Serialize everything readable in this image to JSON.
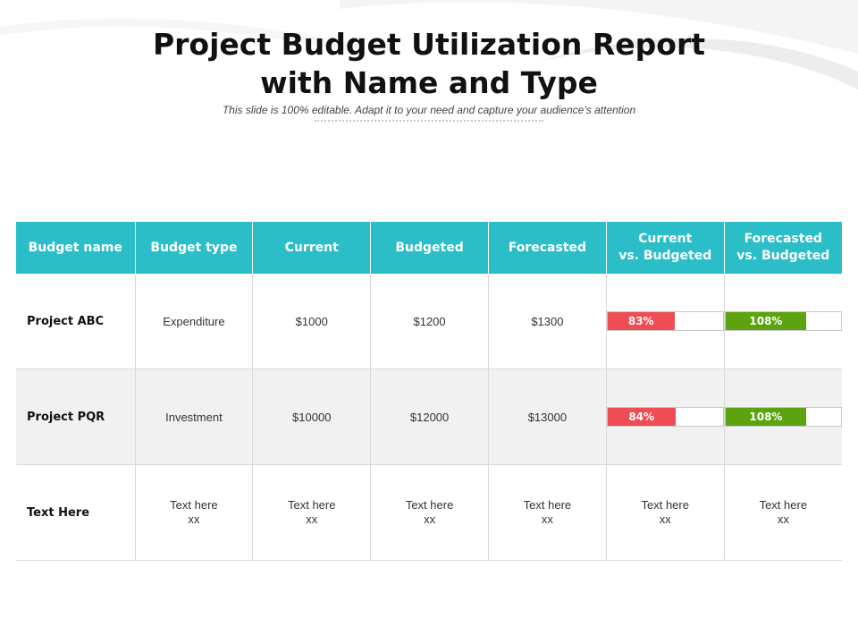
{
  "title": {
    "line1": "Project Budget Utilization Report",
    "line2": "with Name and Type"
  },
  "subtitle": "This slide is 100% editable. Adapt it to your need and capture your audience’s attention",
  "colors": {
    "header_bg": "#2bbec8",
    "current_bar": "#ee4d55",
    "forecast_bar": "#5ca30f"
  },
  "table": {
    "headers": [
      {
        "lines": [
          "Budget name"
        ]
      },
      {
        "lines": [
          "Budget type"
        ]
      },
      {
        "lines": [
          "Current"
        ]
      },
      {
        "lines": [
          "Budgeted"
        ]
      },
      {
        "lines": [
          "Forecasted"
        ]
      },
      {
        "lines": [
          "Current",
          "vs. Budgeted"
        ]
      },
      {
        "lines": [
          "Forecasted",
          "vs. Budgeted"
        ]
      }
    ],
    "rows": [
      {
        "name": "Project ABC",
        "type": "Expenditure",
        "current": "$1000",
        "budgeted": "$1200",
        "forecasted": "$1300",
        "current_vs_budgeted": {
          "label": "83%",
          "value": 83
        },
        "forecasted_vs_budgeted": {
          "label": "108%",
          "value": 108
        }
      },
      {
        "name": "Project PQR",
        "type": "Investment",
        "current": "$10000",
        "budgeted": "$12000",
        "forecasted": "$13000",
        "current_vs_budgeted": {
          "label": "84%",
          "value": 84
        },
        "forecasted_vs_budgeted": {
          "label": "108%",
          "value": 108
        }
      },
      {
        "name": "Text Here",
        "placeholder": {
          "line1": "Text here",
          "line2": "xx"
        }
      }
    ]
  }
}
